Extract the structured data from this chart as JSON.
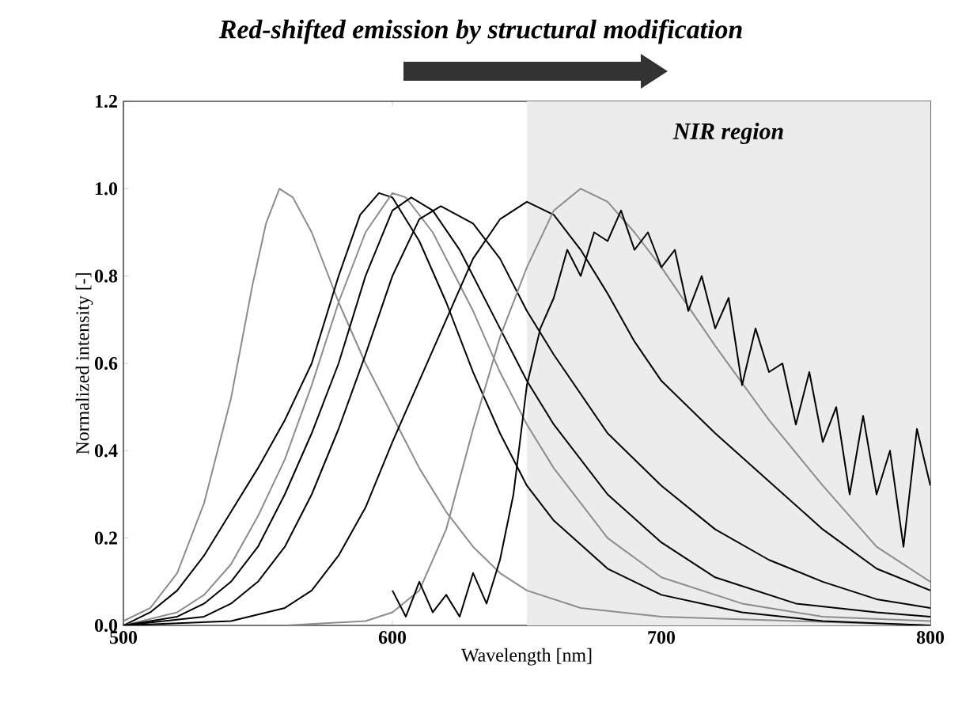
{
  "chart_data": {
    "type": "line",
    "title": "Red-shifted emission by structural modification",
    "xlabel": "Wavelength [nm]",
    "ylabel": "Normalized intensity [-]",
    "xlim": [
      500,
      800
    ],
    "ylim": [
      0,
      1.2
    ],
    "xticks": [
      500,
      600,
      700,
      800
    ],
    "yticks": [
      {
        "value": 0,
        "label": "0.0"
      },
      {
        "value": 0.2,
        "label": "0.2"
      },
      {
        "value": 0.4,
        "label": "0.4"
      },
      {
        "value": 0.6,
        "label": "0.6"
      },
      {
        "value": 0.8,
        "label": "0.8"
      },
      {
        "value": 1.0,
        "label": "1.0"
      },
      {
        "value": 1.2,
        "label": "1.2"
      }
    ],
    "grid": false,
    "marker": "none",
    "line_style": "solid",
    "bands": [
      {
        "axis": "x",
        "from": 650,
        "to": 800,
        "label": "NIR region",
        "color": "#ececec"
      }
    ],
    "series": [
      {
        "color": "#8c8c8c",
        "x": [
          500,
          510,
          520,
          530,
          540,
          548,
          553,
          558,
          563,
          570,
          580,
          590,
          600,
          610,
          620,
          630,
          640,
          650,
          670,
          700,
          750,
          800
        ],
        "values": [
          0.01,
          0.04,
          0.12,
          0.28,
          0.52,
          0.78,
          0.92,
          1.0,
          0.98,
          0.9,
          0.74,
          0.6,
          0.48,
          0.36,
          0.26,
          0.18,
          0.12,
          0.08,
          0.04,
          0.02,
          0.01,
          0
        ]
      },
      {
        "color": "#000000",
        "x": [
          500,
          510,
          520,
          530,
          540,
          550,
          560,
          570,
          580,
          588,
          595,
          600,
          610,
          620,
          630,
          640,
          650,
          660,
          680,
          700,
          730,
          760,
          800
        ],
        "values": [
          0,
          0.03,
          0.08,
          0.16,
          0.26,
          0.36,
          0.47,
          0.6,
          0.8,
          0.94,
          0.99,
          0.98,
          0.88,
          0.74,
          0.58,
          0.44,
          0.32,
          0.24,
          0.13,
          0.07,
          0.03,
          0.01,
          0
        ]
      },
      {
        "color": "#8c8c8c",
        "x": [
          500,
          520,
          530,
          540,
          550,
          560,
          570,
          580,
          590,
          600,
          605,
          615,
          630,
          640,
          650,
          660,
          680,
          700,
          730,
          760,
          800
        ],
        "values": [
          0,
          0.03,
          0.07,
          0.14,
          0.25,
          0.38,
          0.55,
          0.74,
          0.9,
          0.99,
          0.98,
          0.9,
          0.72,
          0.58,
          0.46,
          0.36,
          0.2,
          0.11,
          0.05,
          0.02,
          0.01
        ]
      },
      {
        "color": "#000000",
        "x": [
          500,
          520,
          530,
          540,
          550,
          560,
          570,
          580,
          590,
          600,
          607,
          615,
          625,
          640,
          650,
          660,
          680,
          700,
          720,
          750,
          780,
          800
        ],
        "values": [
          0,
          0.02,
          0.05,
          0.1,
          0.18,
          0.3,
          0.44,
          0.6,
          0.8,
          0.95,
          0.98,
          0.95,
          0.86,
          0.68,
          0.56,
          0.46,
          0.3,
          0.19,
          0.11,
          0.05,
          0.03,
          0.02
        ]
      },
      {
        "color": "#000000",
        "x": [
          500,
          530,
          540,
          550,
          560,
          570,
          580,
          590,
          600,
          610,
          618,
          630,
          640,
          650,
          660,
          680,
          700,
          720,
          740,
          760,
          780,
          800
        ],
        "values": [
          0,
          0.02,
          0.05,
          0.1,
          0.18,
          0.3,
          0.45,
          0.62,
          0.8,
          0.93,
          0.96,
          0.92,
          0.84,
          0.72,
          0.62,
          0.44,
          0.32,
          0.22,
          0.15,
          0.1,
          0.06,
          0.04
        ]
      },
      {
        "color": "#000000",
        "x": [
          500,
          540,
          560,
          570,
          580,
          590,
          600,
          610,
          620,
          630,
          640,
          650,
          660,
          670,
          680,
          690,
          700,
          720,
          740,
          760,
          780,
          800
        ],
        "values": [
          0,
          0.01,
          0.04,
          0.08,
          0.16,
          0.27,
          0.42,
          0.56,
          0.7,
          0.84,
          0.93,
          0.97,
          0.94,
          0.86,
          0.76,
          0.65,
          0.56,
          0.44,
          0.33,
          0.22,
          0.13,
          0.08
        ]
      },
      {
        "color": "#8c8c8c",
        "x": [
          560,
          590,
          600,
          610,
          620,
          630,
          640,
          650,
          660,
          670,
          680,
          690,
          700,
          720,
          740,
          760,
          780,
          800
        ],
        "values": [
          0,
          0.01,
          0.03,
          0.08,
          0.22,
          0.45,
          0.66,
          0.82,
          0.95,
          1.0,
          0.97,
          0.9,
          0.82,
          0.64,
          0.47,
          0.32,
          0.18,
          0.1
        ]
      },
      {
        "color": "#000000",
        "x": [
          600,
          605,
          610,
          615,
          620,
          625,
          630,
          635,
          640,
          645,
          650,
          655,
          660,
          665,
          670,
          675,
          680,
          685,
          690,
          695,
          700,
          705,
          710,
          715,
          720,
          725,
          730,
          735,
          740,
          745,
          750,
          755,
          760,
          765,
          770,
          775,
          780,
          785,
          790,
          795,
          800
        ],
        "values": [
          0.08,
          0.02,
          0.1,
          0.03,
          0.07,
          0.02,
          0.12,
          0.05,
          0.15,
          0.3,
          0.55,
          0.68,
          0.75,
          0.86,
          0.8,
          0.9,
          0.88,
          0.95,
          0.86,
          0.9,
          0.82,
          0.86,
          0.72,
          0.8,
          0.68,
          0.75,
          0.55,
          0.68,
          0.58,
          0.6,
          0.46,
          0.58,
          0.42,
          0.5,
          0.3,
          0.48,
          0.3,
          0.4,
          0.18,
          0.45,
          0.32
        ]
      }
    ]
  }
}
